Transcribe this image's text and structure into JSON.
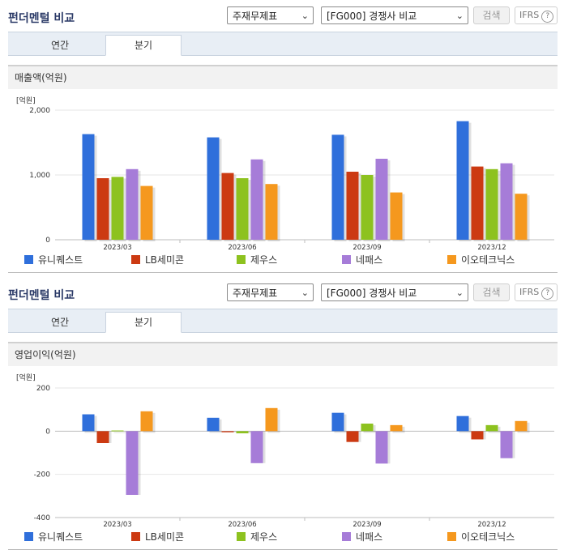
{
  "panels": [
    {
      "title": "펀더멘털 비교",
      "select_item": "주재무제표",
      "select_compare": "[FG000] 경쟁사 비교",
      "search_label": "검색",
      "ifrs_label": "IFRS",
      "help_glyph": "?",
      "tabs": [
        "연간",
        "분기"
      ],
      "active_tab": 1,
      "section_title": "매출액(억원)",
      "unit_label": "[억원]"
    },
    {
      "title": "펀더멘털 비교",
      "select_item": "주재무제표",
      "select_compare": "[FG000] 경쟁사 비교",
      "search_label": "검색",
      "ifrs_label": "IFRS",
      "help_glyph": "?",
      "tabs": [
        "연간",
        "분기"
      ],
      "active_tab": 1,
      "section_title": "영업이익(억원)",
      "unit_label": "[억원]"
    }
  ],
  "colors": [
    "#2f6fdb",
    "#cc3a12",
    "#8dc21f",
    "#a67cd8",
    "#f5981e"
  ],
  "chart_data": [
    {
      "type": "bar",
      "categories": [
        "2023/03",
        "2023/06",
        "2023/09",
        "2023/12"
      ],
      "series": [
        {
          "name": "유니퀘스트",
          "values": [
            1630,
            1580,
            1620,
            1830
          ]
        },
        {
          "name": "LB세미콘",
          "values": [
            950,
            1030,
            1050,
            1130
          ]
        },
        {
          "name": "제우스",
          "values": [
            970,
            950,
            1000,
            1090
          ]
        },
        {
          "name": "네패스",
          "values": [
            1090,
            1240,
            1250,
            1180
          ]
        },
        {
          "name": "이오테크닉스",
          "values": [
            830,
            860,
            730,
            710
          ]
        }
      ],
      "yticks": [
        0,
        1000,
        2000
      ],
      "ytick_labels": [
        "0",
        "1,000",
        "2,000"
      ],
      "ylim": [
        0,
        2000
      ]
    },
    {
      "type": "bar",
      "categories": [
        "2023/03",
        "2023/06",
        "2023/09",
        "2023/12"
      ],
      "series": [
        {
          "name": "유니퀘스트",
          "values": [
            78,
            62,
            85,
            70
          ]
        },
        {
          "name": "LB세미콘",
          "values": [
            -55,
            -5,
            -50,
            -38
          ]
        },
        {
          "name": "제우스",
          "values": [
            3,
            -10,
            35,
            28
          ]
        },
        {
          "name": "네패스",
          "values": [
            -295,
            -148,
            -150,
            -125
          ]
        },
        {
          "name": "이오테크닉스",
          "values": [
            92,
            107,
            28,
            47
          ]
        }
      ],
      "yticks": [
        200,
        0,
        -200,
        -400
      ],
      "ytick_labels": [
        "200",
        "0",
        "-200",
        "-400"
      ],
      "ylim": [
        -400,
        200
      ]
    }
  ]
}
